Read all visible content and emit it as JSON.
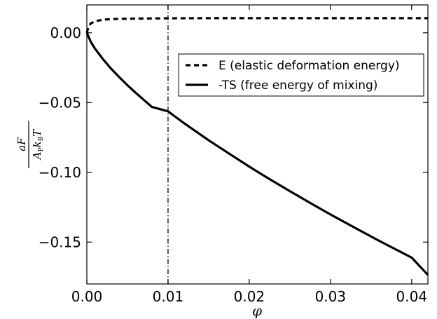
{
  "chart_data": {
    "type": "line",
    "title": "",
    "xlabel": "φ",
    "ylabel": {
      "numerator": "aF",
      "den_A": "A",
      "den_A_sub": "P",
      "den_k": "k",
      "den_k_sub": "B",
      "den_T": "T"
    },
    "xlim": [
      0.0,
      0.042
    ],
    "ylim": [
      -0.18,
      0.02
    ],
    "xticks": [
      0.0,
      0.01,
      0.02,
      0.03,
      0.04
    ],
    "xtick_labels": [
      "0.00",
      "0.01",
      "0.02",
      "0.03",
      "0.04"
    ],
    "yticks": [
      0.0,
      -0.05,
      -0.1,
      -0.15
    ],
    "ytick_labels": [
      "0.00",
      "−0.05",
      "−0.10",
      "−0.15"
    ],
    "grid": false,
    "legend_position": "right",
    "vline": {
      "x": 0.01,
      "style": "dash-dot"
    },
    "series": [
      {
        "name": "E (elastic deformation energy)",
        "style": "dashed",
        "color": "#000000",
        "x": [
          0.0,
          0.0002,
          0.0005,
          0.001,
          0.002,
          0.003,
          0.004,
          0.006,
          0.008,
          0.01,
          0.015,
          0.02,
          0.025,
          0.03,
          0.035,
          0.042
        ],
        "y": [
          0.0,
          0.0045,
          0.0068,
          0.0083,
          0.0094,
          0.0098,
          0.01,
          0.0102,
          0.0103,
          0.0104,
          0.0105,
          0.0105,
          0.0105,
          0.0105,
          0.0105,
          0.0105
        ]
      },
      {
        "name": "-TS (free energy of mixing)",
        "style": "solid",
        "color": "#000000",
        "x": [
          0.0,
          0.0005,
          0.001,
          0.002,
          0.003,
          0.004,
          0.005,
          0.006,
          0.008,
          0.01,
          0.012,
          0.015,
          0.018,
          0.02,
          0.022,
          0.025,
          0.028,
          0.03,
          0.033,
          0.036,
          0.04,
          0.042
        ],
        "y": [
          0.0,
          -0.0066,
          -0.0113,
          -0.019,
          -0.0258,
          -0.0318,
          -0.0376,
          -0.0429,
          -0.0531,
          -0.0563,
          -0.0649,
          -0.077,
          -0.0884,
          -0.0959,
          -0.1031,
          -0.1135,
          -0.1236,
          -0.1302,
          -0.1397,
          -0.1491,
          -0.1611,
          -0.1735
        ]
      }
    ]
  }
}
